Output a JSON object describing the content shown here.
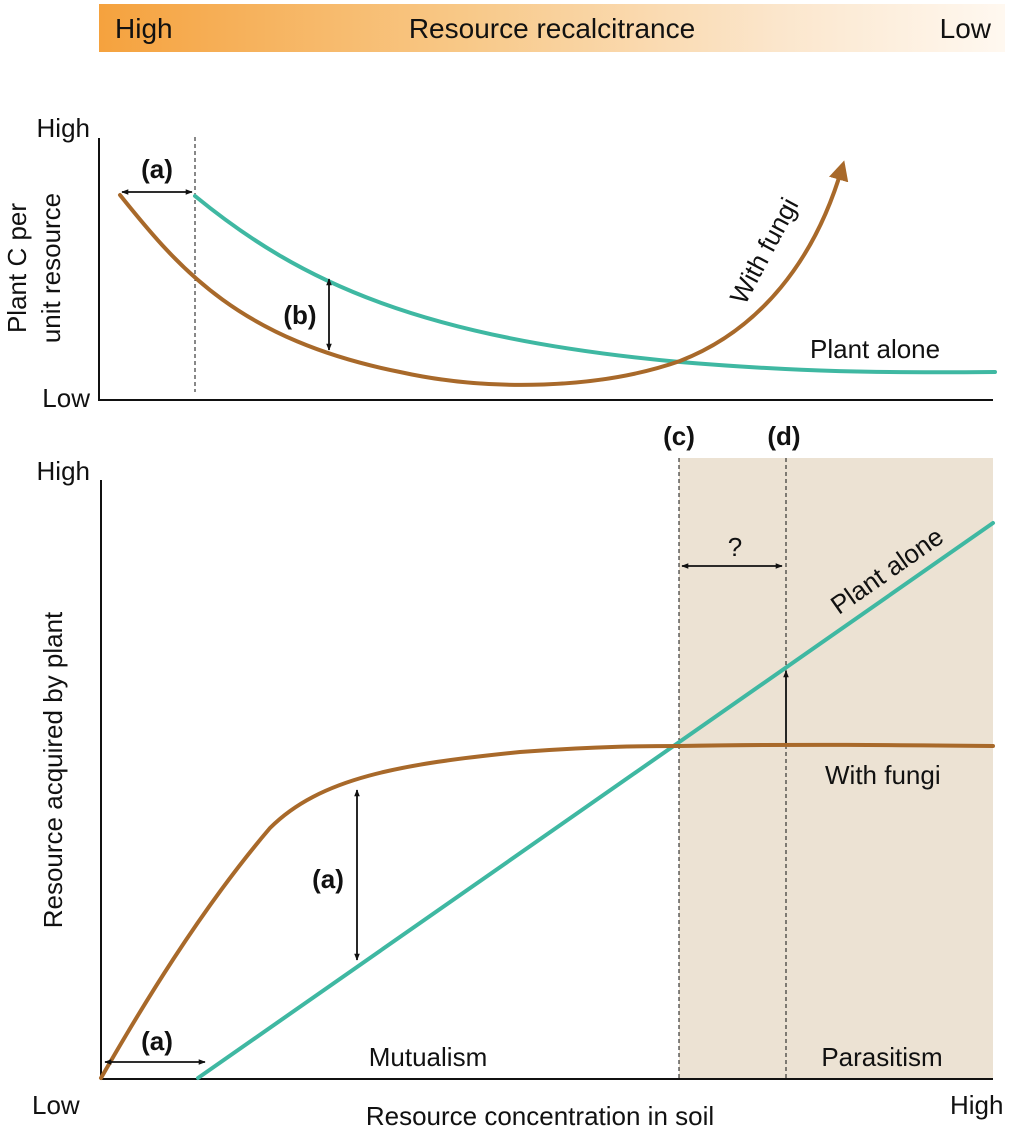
{
  "colors": {
    "plant_alone": "#3fb8a2",
    "with_fungi": "#a8692a",
    "parasitism_zone": "#ece2d3",
    "gradient_start": "#f5a23e",
    "gradient_end": "#fff8f0"
  },
  "top_bar": {
    "left": "High",
    "title": "Resource recalcitrance",
    "right": "Low"
  },
  "top_panel": {
    "y_high": "High",
    "y_low": "Low",
    "ylabel_line1": "Plant C per",
    "ylabel_line2": "unit resource",
    "marker_a": "(a)",
    "marker_b": "(b)",
    "with_fungi": "With fungi",
    "plant_alone": "Plant alone"
  },
  "bottom_panel": {
    "y_high": "High",
    "x_low": "Low",
    "x_high": "High",
    "ylabel": "Resource acquired by plant",
    "xlabel": "Resource concentration in soil",
    "marker_c": "(c)",
    "marker_d": "(d)",
    "question": "?",
    "marker_a_vertical": "(a)",
    "marker_a_horizontal": "(a)",
    "plant_alone": "Plant alone",
    "with_fungi": "With fungi",
    "mutualism": "Mutualism",
    "parasitism": "Parasitism"
  }
}
